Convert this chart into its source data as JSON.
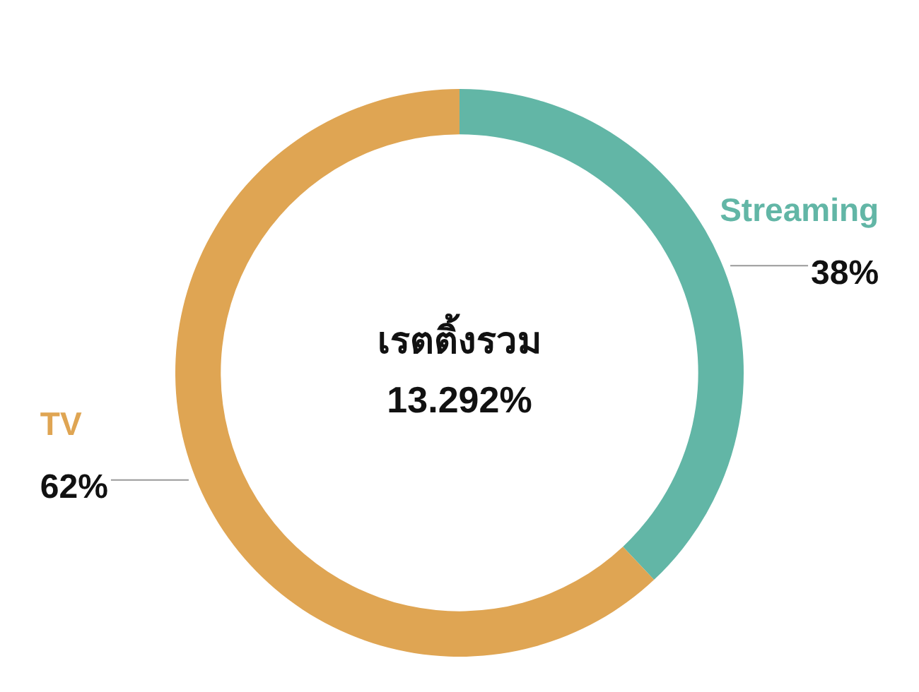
{
  "chart_data": {
    "type": "donut",
    "title": "เรตติ้งรวม",
    "annotations": [
      "13.292%"
    ],
    "categories": [
      "Streaming",
      "TV"
    ],
    "values": [
      38,
      62
    ],
    "colors": [
      "#62b6a6",
      "#dfa553"
    ],
    "value_labels": [
      "38%",
      "62%"
    ],
    "legend": false
  }
}
